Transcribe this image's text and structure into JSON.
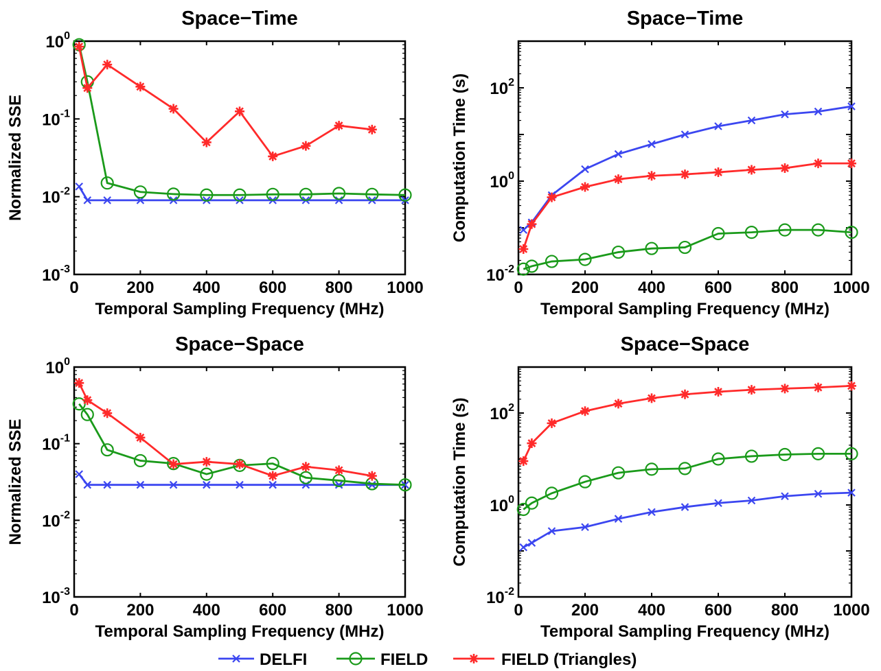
{
  "chart_data": [
    {
      "type": "line",
      "title": "Space−Time",
      "xlabel": "Temporal Sampling Frequency (MHz)",
      "ylabel": "Normalized SSE",
      "yscale": "log",
      "xlim": [
        0,
        1000
      ],
      "ylim_exp": [
        -3,
        0
      ],
      "xticks": [
        "0",
        "200",
        "400",
        "600",
        "800",
        "1000"
      ],
      "yticks": [
        {
          "base": "10",
          "exp": "-3"
        },
        {
          "base": "10",
          "exp": "-2"
        },
        {
          "base": "10",
          "exp": "-1"
        },
        {
          "base": "10",
          "exp": "0"
        }
      ],
      "grid": false,
      "series": [
        {
          "name": "DELFI",
          "color": "#3b46f0",
          "marker": "x",
          "x": [
            15,
            40,
            100,
            200,
            300,
            400,
            500,
            600,
            700,
            800,
            900,
            1000
          ],
          "y": [
            0.0135,
            0.009,
            0.009,
            0.009,
            0.009,
            0.009,
            0.009,
            0.009,
            0.009,
            0.009,
            0.009,
            0.009
          ]
        },
        {
          "name": "FIELD",
          "color": "#1a9a1a",
          "marker": "o",
          "x": [
            15,
            40,
            100,
            200,
            300,
            400,
            500,
            600,
            700,
            800,
            900,
            1000
          ],
          "y": [
            0.9,
            0.3,
            0.015,
            0.0115,
            0.0108,
            0.0105,
            0.0105,
            0.0107,
            0.0107,
            0.011,
            0.0107,
            0.0105
          ]
        },
        {
          "name": "FIELD (Triangles)",
          "color": "#ff2a2a",
          "marker": "star",
          "x": [
            15,
            40,
            100,
            200,
            300,
            400,
            500,
            600,
            700,
            800,
            900
          ],
          "y": [
            0.85,
            0.25,
            0.5,
            0.26,
            0.135,
            0.05,
            0.125,
            0.033,
            0.045,
            0.082,
            0.073
          ]
        }
      ]
    },
    {
      "type": "line",
      "title": "Space−Time",
      "xlabel": "Temporal Sampling Frequency (MHz)",
      "ylabel": "Computation Time (s)",
      "yscale": "log",
      "xlim": [
        0,
        1000
      ],
      "ylim_exp": [
        -2,
        3
      ],
      "xticks": [
        "0",
        "200",
        "400",
        "600",
        "800",
        "1000"
      ],
      "yticks": [
        {
          "base": "10",
          "exp": "-2"
        },
        {
          "base": "10",
          "exp": "0"
        },
        {
          "base": "10",
          "exp": "2"
        }
      ],
      "grid": false,
      "series": [
        {
          "name": "DELFI",
          "color": "#3b46f0",
          "marker": "x",
          "x": [
            15,
            40,
            100,
            200,
            300,
            400,
            500,
            600,
            700,
            800,
            900,
            1000
          ],
          "y": [
            0.09,
            0.13,
            0.5,
            1.8,
            3.8,
            6.2,
            10,
            15,
            20,
            27,
            31,
            40
          ]
        },
        {
          "name": "FIELD",
          "color": "#1a9a1a",
          "marker": "o",
          "x": [
            15,
            40,
            100,
            200,
            300,
            400,
            500,
            600,
            700,
            800,
            900,
            1000
          ],
          "y": [
            0.013,
            0.015,
            0.019,
            0.021,
            0.03,
            0.036,
            0.038,
            0.075,
            0.08,
            0.09,
            0.09,
            0.08
          ]
        },
        {
          "name": "FIELD (Triangles)",
          "color": "#ff2a2a",
          "marker": "star",
          "x": [
            15,
            40,
            100,
            200,
            300,
            400,
            500,
            600,
            700,
            800,
            900,
            1000
          ],
          "y": [
            0.035,
            0.12,
            0.45,
            0.75,
            1.1,
            1.3,
            1.4,
            1.55,
            1.75,
            1.9,
            2.4,
            2.4
          ]
        }
      ]
    },
    {
      "type": "line",
      "title": "Space−Space",
      "xlabel": "Temporal Sampling Frequency (MHz)",
      "ylabel": "Normalized SSE",
      "yscale": "log",
      "xlim": [
        0,
        1000
      ],
      "ylim_exp": [
        -3,
        0
      ],
      "xticks": [
        "0",
        "200",
        "400",
        "600",
        "800",
        "1000"
      ],
      "yticks": [
        {
          "base": "10",
          "exp": "-3"
        },
        {
          "base": "10",
          "exp": "-2"
        },
        {
          "base": "10",
          "exp": "-1"
        },
        {
          "base": "10",
          "exp": "0"
        }
      ],
      "grid": false,
      "series": [
        {
          "name": "DELFI",
          "color": "#3b46f0",
          "marker": "x",
          "x": [
            15,
            40,
            100,
            200,
            300,
            400,
            500,
            600,
            700,
            800,
            900,
            1000
          ],
          "y": [
            0.04,
            0.029,
            0.029,
            0.029,
            0.029,
            0.029,
            0.029,
            0.029,
            0.029,
            0.029,
            0.029,
            0.029
          ]
        },
        {
          "name": "FIELD",
          "color": "#1a9a1a",
          "marker": "o",
          "x": [
            15,
            40,
            100,
            200,
            300,
            400,
            500,
            600,
            700,
            800,
            900,
            1000
          ],
          "y": [
            0.33,
            0.24,
            0.083,
            0.06,
            0.055,
            0.04,
            0.052,
            0.055,
            0.036,
            0.033,
            0.03,
            0.029
          ]
        },
        {
          "name": "FIELD (Triangles)",
          "color": "#ff2a2a",
          "marker": "star",
          "x": [
            15,
            40,
            100,
            200,
            300,
            400,
            500,
            600,
            700,
            800,
            900
          ],
          "y": [
            0.62,
            0.37,
            0.25,
            0.12,
            0.054,
            0.058,
            0.054,
            0.038,
            0.05,
            0.045,
            0.038
          ]
        }
      ]
    },
    {
      "type": "line",
      "title": "Space−Space",
      "xlabel": "Temporal Sampling Frequency (MHz)",
      "ylabel": "Computation Time (s)",
      "yscale": "log",
      "xlim": [
        0,
        1000
      ],
      "ylim_exp": [
        -2,
        3
      ],
      "xticks": [
        "0",
        "200",
        "400",
        "600",
        "800",
        "1000"
      ],
      "yticks": [
        {
          "base": "10",
          "exp": "-2"
        },
        {
          "base": "10",
          "exp": "0"
        },
        {
          "base": "10",
          "exp": "2"
        }
      ],
      "grid": false,
      "series": [
        {
          "name": "DELFI",
          "color": "#3b46f0",
          "marker": "x",
          "x": [
            15,
            40,
            100,
            200,
            300,
            400,
            500,
            600,
            700,
            800,
            900,
            1000
          ],
          "y": [
            0.12,
            0.15,
            0.27,
            0.33,
            0.5,
            0.7,
            0.9,
            1.1,
            1.25,
            1.55,
            1.75,
            1.85
          ]
        },
        {
          "name": "FIELD",
          "color": "#1a9a1a",
          "marker": "o",
          "x": [
            15,
            40,
            100,
            200,
            300,
            400,
            500,
            600,
            700,
            800,
            900,
            1000
          ],
          "y": [
            0.8,
            1.1,
            1.8,
            3.2,
            5,
            6,
            6.2,
            10,
            11.5,
            12.5,
            13,
            13
          ]
        },
        {
          "name": "FIELD (Triangles)",
          "color": "#ff2a2a",
          "marker": "star",
          "x": [
            15,
            40,
            100,
            200,
            300,
            400,
            500,
            600,
            700,
            800,
            900,
            1000
          ],
          "y": [
            9,
            22,
            60,
            110,
            160,
            210,
            255,
            290,
            320,
            340,
            360,
            390
          ]
        }
      ]
    }
  ],
  "legend": {
    "placement": "bottom-center",
    "items": [
      {
        "label": "DELFI",
        "color": "#3b46f0",
        "marker": "x"
      },
      {
        "label": "FIELD",
        "color": "#1a9a1a",
        "marker": "o"
      },
      {
        "label": "FIELD (Triangles)",
        "color": "#ff2a2a",
        "marker": "star"
      }
    ]
  }
}
